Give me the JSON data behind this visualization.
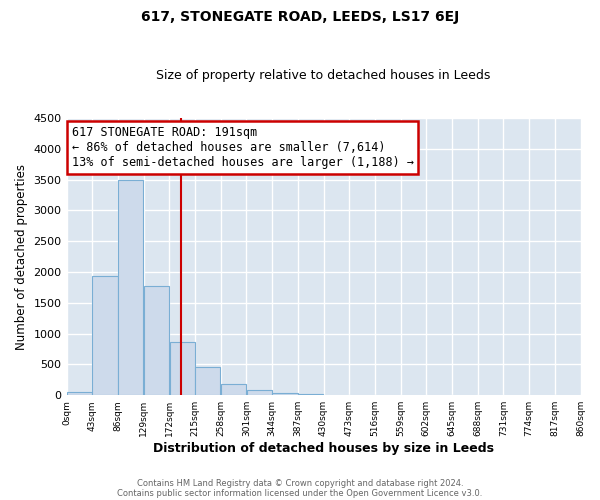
{
  "title": "617, STONEGATE ROAD, LEEDS, LS17 6EJ",
  "subtitle": "Size of property relative to detached houses in Leeds",
  "xlabel": "Distribution of detached houses by size in Leeds",
  "ylabel": "Number of detached properties",
  "bar_color": "#cddaeb",
  "bar_edge_color": "#7aaed4",
  "background_color": "#dce6f0",
  "fig_background_color": "#ffffff",
  "grid_color": "#ffffff",
  "property_size": 191,
  "vline_color": "#cc0000",
  "annotation_box_color": "#cc0000",
  "annotation_line1": "617 STONEGATE ROAD: 191sqm",
  "annotation_line2": "← 86% of detached houses are smaller (7,614)",
  "annotation_line3": "13% of semi-detached houses are larger (1,188) →",
  "bin_edges": [
    0,
    43,
    86,
    129,
    172,
    215,
    258,
    301,
    344,
    387,
    430,
    473,
    516,
    559,
    602,
    645,
    688,
    731,
    774,
    817,
    860
  ],
  "bin_labels": [
    "0sqm",
    "43sqm",
    "86sqm",
    "129sqm",
    "172sqm",
    "215sqm",
    "258sqm",
    "301sqm",
    "344sqm",
    "387sqm",
    "430sqm",
    "473sqm",
    "516sqm",
    "559sqm",
    "602sqm",
    "645sqm",
    "688sqm",
    "731sqm",
    "774sqm",
    "817sqm",
    "860sqm"
  ],
  "counts": [
    50,
    1930,
    3490,
    1770,
    870,
    450,
    175,
    90,
    40,
    25,
    10,
    0,
    0,
    0,
    0,
    0,
    0,
    0,
    0,
    0
  ],
  "ylim": [
    0,
    4500
  ],
  "yticks": [
    0,
    500,
    1000,
    1500,
    2000,
    2500,
    3000,
    3500,
    4000,
    4500
  ],
  "footnote1": "Contains HM Land Registry data © Crown copyright and database right 2024.",
  "footnote2": "Contains public sector information licensed under the Open Government Licence v3.0."
}
